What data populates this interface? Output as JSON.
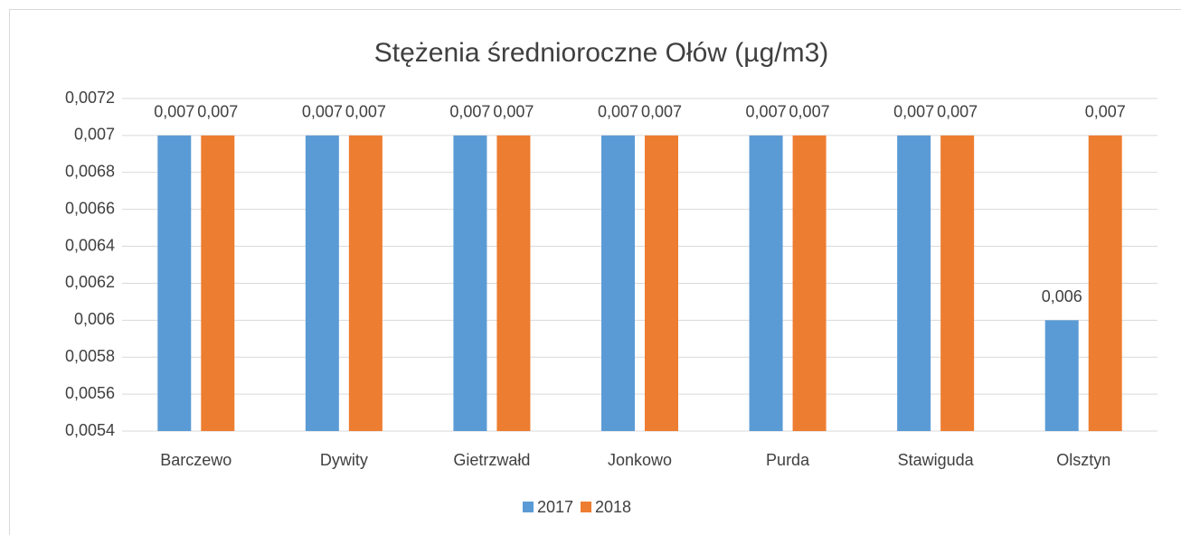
{
  "chart_data": {
    "type": "bar",
    "title": "Stężenia średnioroczne Ołów (µg/m3)",
    "categories": [
      "Barczewo",
      "Dywity",
      "Gietrzwałd",
      "Jonkowo",
      "Purda",
      "Stawiguda",
      "Olsztyn"
    ],
    "series": [
      {
        "name": "2017",
        "color": "#5b9bd5",
        "values": [
          0.007,
          0.007,
          0.007,
          0.007,
          0.007,
          0.007,
          0.006
        ],
        "value_labels": [
          "0,007",
          "0,007",
          "0,007",
          "0,007",
          "0,007",
          "0,007",
          "0,006"
        ]
      },
      {
        "name": "2018",
        "color": "#ed7d31",
        "values": [
          0.007,
          0.007,
          0.007,
          0.007,
          0.007,
          0.007,
          0.007
        ],
        "value_labels": [
          "0,007",
          "0,007",
          "0,007",
          "0,007",
          "0,007",
          "0,007",
          "0,007"
        ]
      }
    ],
    "ylim": [
      0.0054,
      0.0072
    ],
    "yticks": [
      {
        "value": 0.0054,
        "label": "0,0054"
      },
      {
        "value": 0.0056,
        "label": "0,0056"
      },
      {
        "value": 0.0058,
        "label": "0,0058"
      },
      {
        "value": 0.006,
        "label": "0,006"
      },
      {
        "value": 0.0062,
        "label": "0,0062"
      },
      {
        "value": 0.0064,
        "label": "0,0064"
      },
      {
        "value": 0.0066,
        "label": "0,0066"
      },
      {
        "value": 0.0068,
        "label": "0,0068"
      },
      {
        "value": 0.007,
        "label": "0,007"
      },
      {
        "value": 0.0072,
        "label": "0,0072"
      }
    ],
    "grid": true,
    "legend": "bottom"
  }
}
